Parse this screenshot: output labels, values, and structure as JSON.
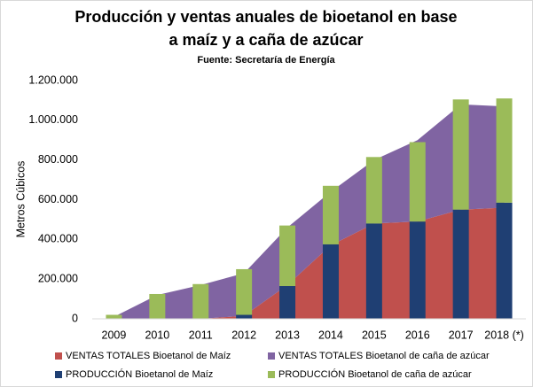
{
  "chart_data": {
    "type": "combo",
    "title": [
      "Producción y ventas anuales de bioetanol en base",
      "a maíz y a caña de azúcar"
    ],
    "subtitle": "Fuente: Secretaría de Energía",
    "y_label": "Metros Cúbicos",
    "categories": [
      "2009",
      "2010",
      "2011",
      "2012",
      "2013",
      "2014",
      "2015",
      "2016",
      "2017",
      "2018 (*)"
    ],
    "series": [
      {
        "name": "VENTAS TOTALES Bioetanol de Maíz",
        "type": "area",
        "color": "#c0504d",
        "values": [
          0,
          0,
          0,
          15000,
          170000,
          370000,
          480000,
          490000,
          550000,
          560000
        ]
      },
      {
        "name": "VENTAS TOTALES Bioetanol de caña de azúcar",
        "type": "area",
        "color": "#8064a2",
        "values": [
          10000,
          120000,
          170000,
          215000,
          290000,
          270000,
          320000,
          410000,
          530000,
          510000
        ]
      },
      {
        "name": "PRODUCCIÓN Bioetanol de Maíz",
        "type": "bar",
        "color": "#1f3f73",
        "values": [
          0,
          0,
          0,
          20000,
          165000,
          375000,
          480000,
          490000,
          550000,
          585000
        ]
      },
      {
        "name": "PRODUCCIÓN Bioetanol de caña de azúcar",
        "type": "bar",
        "color": "#9bbb59",
        "values": [
          20000,
          125000,
          175000,
          230000,
          305000,
          295000,
          335000,
          400000,
          555000,
          525000
        ]
      }
    ],
    "ylim": [
      0,
      1200000
    ],
    "yticks": [
      0,
      {
        "value": 200000,
        "label": "200.000"
      },
      {
        "value": 400000,
        "label": "400.000"
      },
      {
        "value": 600000,
        "label": "600.000"
      },
      {
        "value": 800000,
        "label": "800.000"
      },
      {
        "value": 1000000,
        "label": "1.000.000"
      },
      {
        "value": 1200000,
        "label": "1.200.000"
      }
    ]
  }
}
